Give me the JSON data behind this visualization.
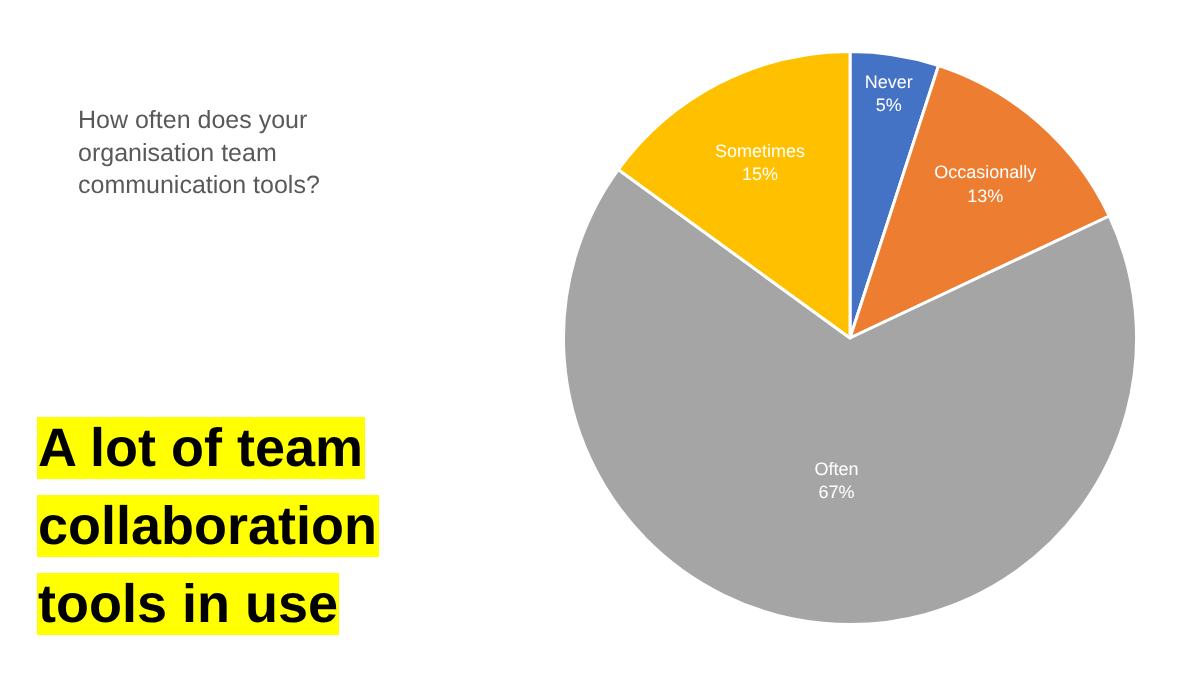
{
  "chart_data": {
    "type": "pie",
    "title": "A lot of team collaboration tools in use",
    "subtitle": "How often does your organisation team communication tools?",
    "categories": [
      "Never",
      "Occasionally",
      "Often",
      "Sometimes"
    ],
    "values": [
      5,
      13,
      67,
      15
    ],
    "value_labels": [
      "5%",
      "13%",
      "67%",
      "15%"
    ],
    "colors": [
      "#4472c4",
      "#ed7d31",
      "#a5a5a5",
      "#ffc000"
    ],
    "legend": false
  }
}
